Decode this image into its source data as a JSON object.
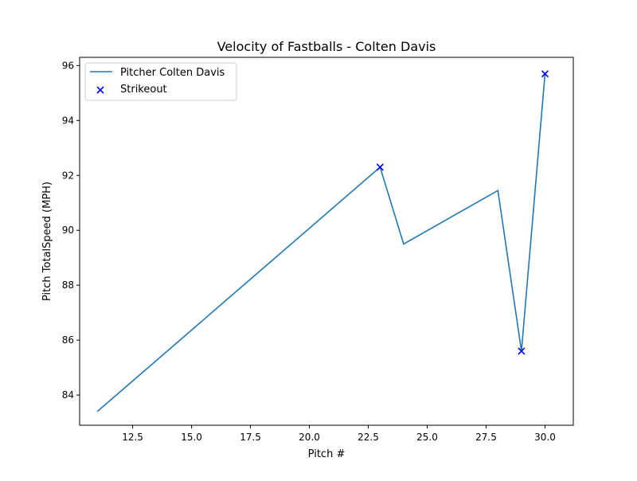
{
  "chart_data": {
    "type": "line",
    "title": "Velocity of Fastballs - Colten Davis",
    "xlabel": "Pitch #",
    "ylabel": "Pitch TotalSpeed (MPH)",
    "xlim": [
      10.25,
      31.2
    ],
    "ylim": [
      82.9,
      96.3
    ],
    "x_ticks": [
      12.5,
      15.0,
      17.5,
      20.0,
      22.5,
      25.0,
      27.5,
      30.0
    ],
    "x_tick_labels": [
      "12.5",
      "15.0",
      "17.5",
      "20.0",
      "22.5",
      "25.0",
      "27.5",
      "30.0"
    ],
    "y_ticks": [
      84,
      86,
      88,
      90,
      92,
      94,
      96
    ],
    "y_tick_labels": [
      "84",
      "86",
      "88",
      "90",
      "92",
      "94",
      "96"
    ],
    "grid": false,
    "legend_position": "upper-left",
    "series": [
      {
        "name": "Pitcher Colten Davis",
        "kind": "line",
        "color": "#1f77b4",
        "x": [
          11,
          23,
          24,
          28,
          29,
          30
        ],
        "y": [
          83.4,
          92.3,
          89.5,
          91.45,
          85.6,
          95.7
        ]
      },
      {
        "name": "Strikeout",
        "kind": "scatter",
        "marker": "x",
        "color": "#0000ff",
        "x": [
          23,
          29,
          30
        ],
        "y": [
          92.3,
          85.6,
          95.7
        ]
      }
    ]
  }
}
